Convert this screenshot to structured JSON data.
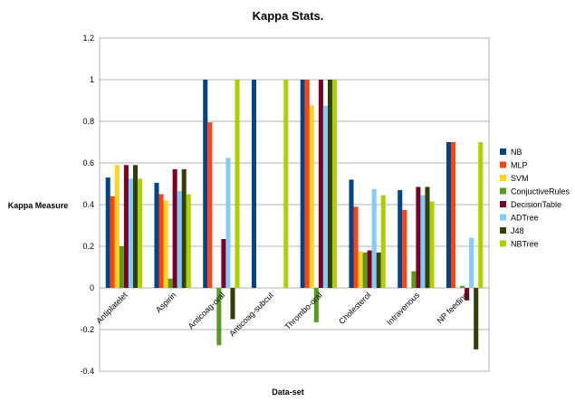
{
  "chart_data": {
    "type": "bar",
    "title": "Kappa Stats.",
    "xlabel": "Data-set",
    "ylabel": "Kappa Measure",
    "ylim": [
      -0.4,
      1.2
    ],
    "yticks": [
      -0.4,
      -0.2,
      0,
      0.2,
      0.4,
      0.6,
      0.8,
      1,
      1.2
    ],
    "ytick_labels": [
      "-0.4",
      "-0.2",
      "0",
      "0.2",
      "0.4",
      "0.6",
      "0.8",
      "1",
      "1.2"
    ],
    "grid": true,
    "legend_position": "right",
    "categories": [
      "Antiplatelet",
      "Aspirin",
      "Anticoag-oral",
      "Anticoag-subcut",
      "Thrombo-oral",
      "Cholesterol",
      "Intravenous",
      "NP feeding"
    ],
    "series": [
      {
        "name": "NB",
        "color": "#004586",
        "values": [
          0.53,
          0.505,
          1.0,
          1.0,
          1.0,
          0.52,
          0.47,
          0.7
        ]
      },
      {
        "name": "MLP",
        "color": "#ff420e",
        "values": [
          0.44,
          0.45,
          0.795,
          0,
          1.0,
          0.39,
          0.375,
          0.7
        ]
      },
      {
        "name": "SVM",
        "color": "#ffd320",
        "values": [
          0.59,
          0.42,
          0,
          0,
          0.875,
          0.175,
          0,
          0
        ]
      },
      {
        "name": "ConjuctiveRules",
        "color": "#579d1c",
        "values": [
          0.2,
          0.045,
          -0.275,
          0,
          -0.165,
          0.17,
          0.08,
          0.01
        ]
      },
      {
        "name": "DecisionTable",
        "color": "#7e0021",
        "values": [
          0.59,
          0.57,
          0.235,
          0,
          1.0,
          0.18,
          0.485,
          -0.06
        ]
      },
      {
        "name": "ADTree",
        "color": "#83caff",
        "values": [
          0.525,
          0.465,
          0.625,
          0,
          0.875,
          0.475,
          0.445,
          0.24
        ]
      },
      {
        "name": "J48",
        "color": "#314004",
        "values": [
          0.59,
          0.57,
          -0.15,
          0,
          1.0,
          0.17,
          0.485,
          -0.295
        ]
      },
      {
        "name": "NBTree",
        "color": "#aecf00",
        "values": [
          0.525,
          0.45,
          1.0,
          1.0,
          1.0,
          0.445,
          0.415,
          0.7
        ]
      }
    ]
  }
}
